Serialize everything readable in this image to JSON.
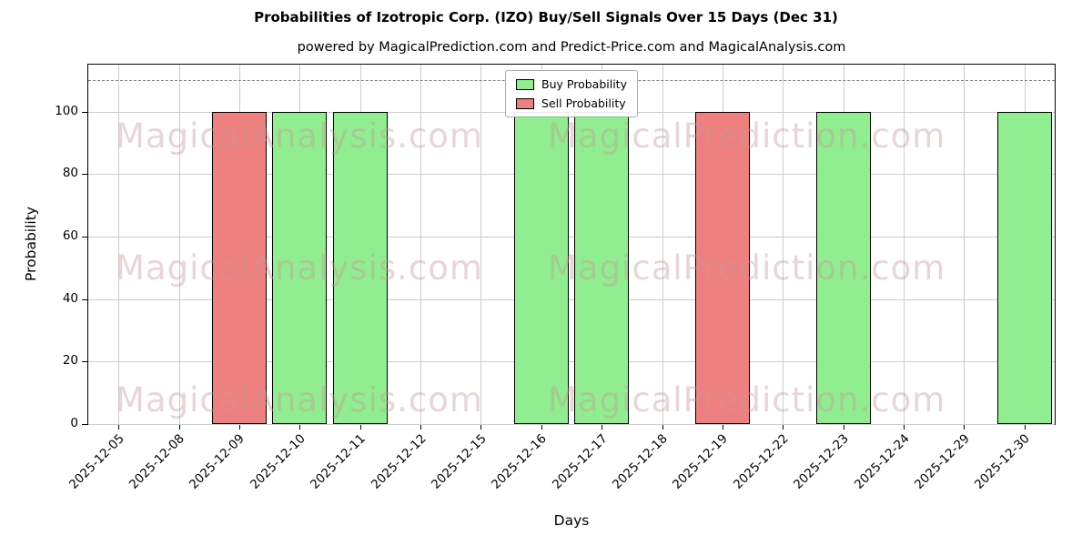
{
  "chart_data": {
    "type": "bar",
    "title": "Probabilities of Izotropic Corp. (IZO) Buy/Sell Signals Over 15 Days (Dec 31)",
    "subtitle": "powered by MagicalPrediction.com and Predict-Price.com and MagicalAnalysis.com",
    "xlabel": "Days",
    "ylabel": "Probability",
    "categories": [
      "2025-12-05",
      "2025-12-08",
      "2025-12-09",
      "2025-12-10",
      "2025-12-11",
      "2025-12-12",
      "2025-12-15",
      "2025-12-16",
      "2025-12-17",
      "2025-12-18",
      "2025-12-19",
      "2025-12-22",
      "2025-12-23",
      "2025-12-24",
      "2025-12-29",
      "2025-12-30"
    ],
    "series": [
      {
        "name": "Buy Probability",
        "color": "#90ee90",
        "values": [
          0,
          0,
          0,
          100,
          100,
          0,
          0,
          100,
          100,
          0,
          0,
          0,
          100,
          0,
          0,
          100
        ]
      },
      {
        "name": "Sell Probability",
        "color": "#ee8080",
        "values": [
          0,
          0,
          100,
          0,
          0,
          0,
          0,
          0,
          0,
          0,
          100,
          0,
          0,
          0,
          0,
          0
        ]
      }
    ],
    "ylim": [
      0,
      115
    ],
    "yticks": [
      0,
      20,
      40,
      60,
      80,
      100
    ],
    "dashed_line_y": 110,
    "grid": true,
    "legend_position": "upper center",
    "bar_edge_color": "#000000",
    "grid_color": "#cccccc",
    "watermarks": [
      "MagicalAnalysis.com",
      "MagicalPrediction.com"
    ]
  }
}
